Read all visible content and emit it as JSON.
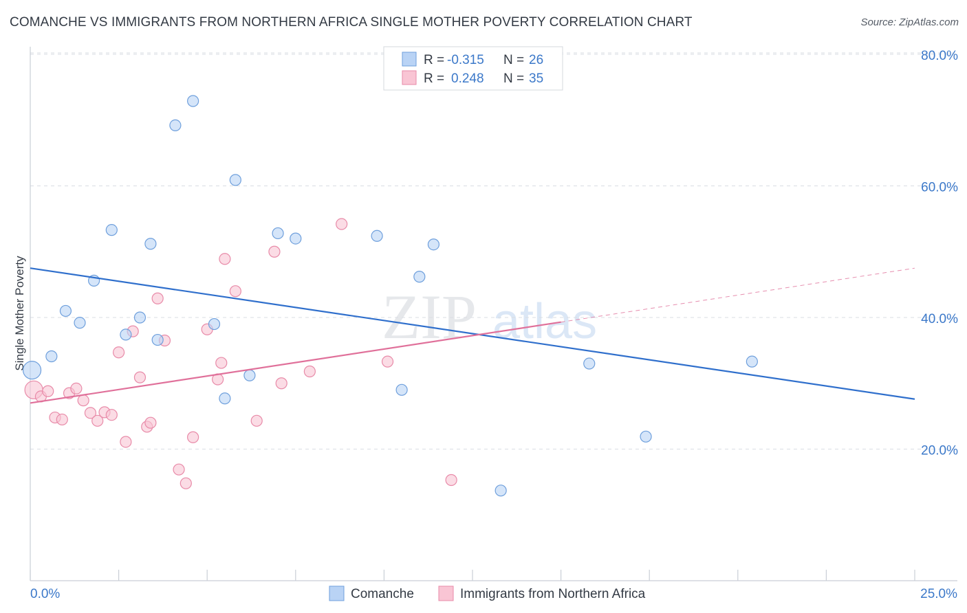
{
  "header": {
    "title": "COMANCHE VS IMMIGRANTS FROM NORTHERN AFRICA SINGLE MOTHER POVERTY CORRELATION CHART",
    "source": "Source: ZipAtlas.com"
  },
  "legend_top": {
    "rows": [
      {
        "r_label": "R = ",
        "r_value": "-0.315",
        "n_label": "N = ",
        "n_value": "26"
      },
      {
        "r_label": "R = ",
        "r_value": "0.248",
        "n_label": "N = ",
        "n_value": "35"
      }
    ]
  },
  "watermark": {
    "zip": "ZIP",
    "atlas": "atlas"
  },
  "colors": {
    "comanche_fill": "#b9d3f5",
    "comanche_stroke": "#6e9fdc",
    "comanche_line": "#2f6fcc",
    "immigrants_fill": "#f9c5d4",
    "immigrants_stroke": "#e88aa8",
    "immigrants_line": "#e0709a",
    "grid": "#d9dde3",
    "tick_text": "#3b78c9"
  },
  "chart_data": {
    "type": "scatter",
    "title": "COMANCHE VS IMMIGRANTS FROM NORTHERN AFRICA SINGLE MOTHER POVERTY CORRELATION CHART",
    "xlabel": "",
    "ylabel": "Single Mother Poverty",
    "xlim": [
      0,
      25
    ],
    "ylim": [
      0,
      80
    ],
    "x_tick_labels": [
      "0.0%",
      "25.0%"
    ],
    "y_ticks": [
      20,
      40,
      60,
      80
    ],
    "y_tick_labels": [
      "20.0%",
      "40.0%",
      "60.0%",
      "80.0%"
    ],
    "legend": [
      "Comanche",
      "Immigrants from Northern Africa"
    ],
    "series": [
      {
        "name": "Comanche",
        "r": -0.315,
        "n": 26,
        "trend": {
          "x": [
            0,
            25
          ],
          "y": [
            47.5,
            27.6
          ]
        },
        "points": [
          {
            "x": 0.05,
            "y": 32.0,
            "big": true
          },
          {
            "x": 0.6,
            "y": 34.1
          },
          {
            "x": 1.0,
            "y": 41.0
          },
          {
            "x": 1.4,
            "y": 39.2
          },
          {
            "x": 1.8,
            "y": 45.6
          },
          {
            "x": 2.3,
            "y": 53.3
          },
          {
            "x": 2.7,
            "y": 37.4
          },
          {
            "x": 3.1,
            "y": 40.0
          },
          {
            "x": 3.4,
            "y": 51.2
          },
          {
            "x": 3.6,
            "y": 36.6
          },
          {
            "x": 4.1,
            "y": 69.2
          },
          {
            "x": 4.6,
            "y": 72.9
          },
          {
            "x": 5.2,
            "y": 39.0
          },
          {
            "x": 5.5,
            "y": 27.7
          },
          {
            "x": 5.8,
            "y": 60.9
          },
          {
            "x": 6.2,
            "y": 31.2
          },
          {
            "x": 7.0,
            "y": 52.8
          },
          {
            "x": 7.5,
            "y": 52.0
          },
          {
            "x": 9.8,
            "y": 52.4
          },
          {
            "x": 10.5,
            "y": 29.0
          },
          {
            "x": 11.0,
            "y": 46.2
          },
          {
            "x": 11.4,
            "y": 51.1
          },
          {
            "x": 13.3,
            "y": 13.7
          },
          {
            "x": 15.8,
            "y": 33.0
          },
          {
            "x": 17.4,
            "y": 21.9
          },
          {
            "x": 20.4,
            "y": 33.3
          }
        ]
      },
      {
        "name": "Immigrants from Northern Africa",
        "r": 0.248,
        "n": 35,
        "trend": {
          "x": [
            0,
            15
          ],
          "y": [
            27.0,
            39.3
          ]
        },
        "trend_dashed": {
          "x": [
            15,
            25
          ],
          "y": [
            39.3,
            47.5
          ]
        },
        "points": [
          {
            "x": 0.1,
            "y": 29.0,
            "big": true
          },
          {
            "x": 0.3,
            "y": 28.0
          },
          {
            "x": 0.5,
            "y": 28.8
          },
          {
            "x": 0.7,
            "y": 24.8
          },
          {
            "x": 0.9,
            "y": 24.5
          },
          {
            "x": 1.1,
            "y": 28.5
          },
          {
            "x": 1.3,
            "y": 29.2
          },
          {
            "x": 1.5,
            "y": 27.4
          },
          {
            "x": 1.7,
            "y": 25.5
          },
          {
            "x": 1.9,
            "y": 24.3
          },
          {
            "x": 2.1,
            "y": 25.6
          },
          {
            "x": 2.3,
            "y": 25.2
          },
          {
            "x": 2.5,
            "y": 34.7
          },
          {
            "x": 2.7,
            "y": 21.1
          },
          {
            "x": 2.9,
            "y": 37.9
          },
          {
            "x": 3.1,
            "y": 30.9
          },
          {
            "x": 3.3,
            "y": 23.4
          },
          {
            "x": 3.4,
            "y": 24.0
          },
          {
            "x": 3.6,
            "y": 42.9
          },
          {
            "x": 3.8,
            "y": 36.5
          },
          {
            "x": 4.2,
            "y": 16.9
          },
          {
            "x": 4.4,
            "y": 14.8
          },
          {
            "x": 4.6,
            "y": 21.8
          },
          {
            "x": 5.0,
            "y": 38.2
          },
          {
            "x": 5.3,
            "y": 30.6
          },
          {
            "x": 5.4,
            "y": 33.1
          },
          {
            "x": 5.5,
            "y": 48.9
          },
          {
            "x": 5.8,
            "y": 44.0
          },
          {
            "x": 6.4,
            "y": 24.3
          },
          {
            "x": 6.9,
            "y": 50.0
          },
          {
            "x": 7.1,
            "y": 30.0
          },
          {
            "x": 7.9,
            "y": 31.8
          },
          {
            "x": 8.8,
            "y": 54.2
          },
          {
            "x": 10.1,
            "y": 33.3
          },
          {
            "x": 11.9,
            "y": 15.3
          }
        ]
      }
    ]
  }
}
